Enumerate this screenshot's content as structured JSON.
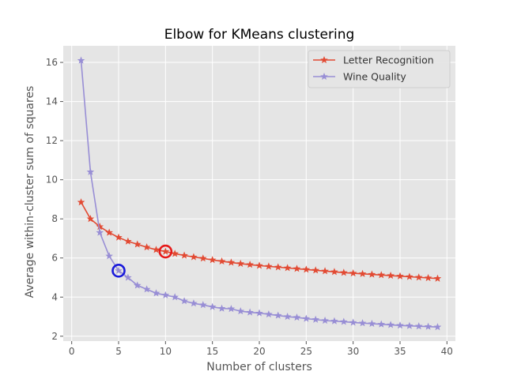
{
  "chart_data": {
    "type": "line",
    "title": "Elbow for KMeans clustering",
    "xlabel": "Number of clusters",
    "ylabel": "Average within-cluster sum of squares",
    "xlim": [
      -0.9,
      40.9
    ],
    "ylim": [
      1.75,
      16.85
    ],
    "xticks": [
      0,
      5,
      10,
      15,
      20,
      25,
      30,
      35,
      40
    ],
    "yticks": [
      2,
      4,
      6,
      8,
      10,
      12,
      14,
      16
    ],
    "grid": true,
    "legend_position": "top-right",
    "series": [
      {
        "name": "Letter Recognition",
        "color": "#E24A33",
        "marker": "star",
        "x": [
          1,
          2,
          3,
          4,
          5,
          6,
          7,
          8,
          9,
          10,
          11,
          12,
          13,
          14,
          15,
          16,
          17,
          18,
          19,
          20,
          21,
          22,
          23,
          24,
          25,
          26,
          27,
          28,
          29,
          30,
          31,
          32,
          33,
          34,
          35,
          36,
          37,
          38,
          39
        ],
        "y": [
          8.85,
          8.0,
          7.6,
          7.3,
          7.05,
          6.85,
          6.7,
          6.55,
          6.42,
          6.33,
          6.22,
          6.13,
          6.05,
          5.98,
          5.9,
          5.83,
          5.77,
          5.71,
          5.66,
          5.61,
          5.57,
          5.53,
          5.49,
          5.45,
          5.41,
          5.37,
          5.33,
          5.29,
          5.25,
          5.22,
          5.19,
          5.16,
          5.13,
          5.1,
          5.07,
          5.04,
          5.01,
          4.98,
          4.95
        ],
        "highlight": {
          "x": 10,
          "y": 6.33,
          "color": "#E61A1A"
        }
      },
      {
        "name": "Wine Quality",
        "color": "#988ED5",
        "marker": "star",
        "x": [
          1,
          2,
          3,
          4,
          5,
          6,
          7,
          8,
          9,
          10,
          11,
          12,
          13,
          14,
          15,
          16,
          17,
          18,
          19,
          20,
          21,
          22,
          23,
          24,
          25,
          26,
          27,
          28,
          29,
          30,
          31,
          32,
          33,
          34,
          35,
          36,
          37,
          38,
          39
        ],
        "y": [
          16.1,
          10.4,
          7.3,
          6.1,
          5.35,
          5.0,
          4.6,
          4.4,
          4.2,
          4.1,
          4.0,
          3.8,
          3.68,
          3.6,
          3.5,
          3.42,
          3.4,
          3.28,
          3.22,
          3.18,
          3.12,
          3.06,
          3.0,
          2.96,
          2.9,
          2.85,
          2.8,
          2.77,
          2.74,
          2.7,
          2.67,
          2.64,
          2.61,
          2.58,
          2.55,
          2.53,
          2.51,
          2.49,
          2.47
        ],
        "highlight": {
          "x": 5,
          "y": 5.35,
          "color": "#1A1ADB"
        }
      }
    ]
  }
}
